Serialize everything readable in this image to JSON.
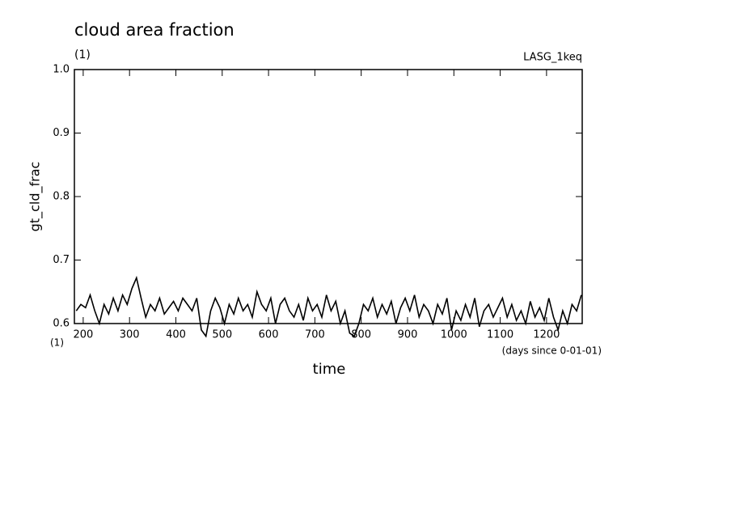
{
  "chart_data": {
    "type": "line",
    "title": "cloud area fraction",
    "y_units": "(1)",
    "run_label": "LASG_1keq",
    "ylabel": "gt_cld_frac",
    "xlabel": "time",
    "x_units": "(1)",
    "x_note": "(days since 0-01-01)",
    "xlim": [
      181,
      1277
    ],
    "ylim": [
      0.6,
      1.0
    ],
    "xticks": [
      200,
      300,
      400,
      500,
      600,
      700,
      800,
      900,
      1000,
      1100,
      1200
    ],
    "yticks": [
      0.6,
      0.7,
      0.8,
      0.9,
      {
        "value": 1,
        "label": "1.0"
      }
    ],
    "x": [
      185,
      195,
      205,
      215,
      225,
      235,
      245,
      255,
      265,
      275,
      285,
      295,
      305,
      315,
      325,
      335,
      345,
      355,
      365,
      375,
      385,
      395,
      405,
      415,
      425,
      435,
      445,
      455,
      465,
      475,
      485,
      495,
      505,
      515,
      525,
      535,
      545,
      555,
      565,
      575,
      585,
      595,
      605,
      615,
      625,
      635,
      645,
      655,
      665,
      675,
      685,
      695,
      705,
      715,
      725,
      735,
      745,
      755,
      765,
      775,
      785,
      795,
      805,
      815,
      825,
      835,
      845,
      855,
      865,
      875,
      885,
      895,
      905,
      915,
      925,
      935,
      945,
      955,
      965,
      975,
      985,
      995,
      1005,
      1015,
      1025,
      1035,
      1045,
      1055,
      1065,
      1075,
      1085,
      1095,
      1105,
      1115,
      1125,
      1135,
      1145,
      1155,
      1165,
      1175,
      1185,
      1195,
      1205,
      1215,
      1225,
      1235,
      1245,
      1255,
      1265,
      1275
    ],
    "series": [
      {
        "color": "#000000",
        "values": [
          0.62,
          0.63,
          0.625,
          0.645,
          0.62,
          0.6,
          0.63,
          0.615,
          0.64,
          0.62,
          0.645,
          0.63,
          0.655,
          0.672,
          0.64,
          0.61,
          0.63,
          0.62,
          0.64,
          0.615,
          0.625,
          0.635,
          0.62,
          0.64,
          0.63,
          0.62,
          0.64,
          0.59,
          0.58,
          0.62,
          0.64,
          0.625,
          0.6,
          0.63,
          0.615,
          0.64,
          0.62,
          0.63,
          0.61,
          0.65,
          0.63,
          0.62,
          0.64,
          0.6,
          0.63,
          0.64,
          0.62,
          0.61,
          0.63,
          0.605,
          0.64,
          0.62,
          0.63,
          0.61,
          0.645,
          0.62,
          0.635,
          0.6,
          0.62,
          0.585,
          0.58,
          0.6,
          0.63,
          0.62,
          0.64,
          0.61,
          0.63,
          0.615,
          0.635,
          0.6,
          0.625,
          0.64,
          0.62,
          0.645,
          0.61,
          0.63,
          0.62,
          0.6,
          0.63,
          0.615,
          0.64,
          0.59,
          0.62,
          0.605,
          0.63,
          0.61,
          0.64,
          0.595,
          0.62,
          0.63,
          0.61,
          0.625,
          0.64,
          0.61,
          0.63,
          0.605,
          0.62,
          0.6,
          0.635,
          0.61,
          0.625,
          0.605,
          0.64,
          0.61,
          0.59,
          0.62,
          0.6,
          0.63,
          0.62,
          0.645
        ]
      }
    ]
  }
}
